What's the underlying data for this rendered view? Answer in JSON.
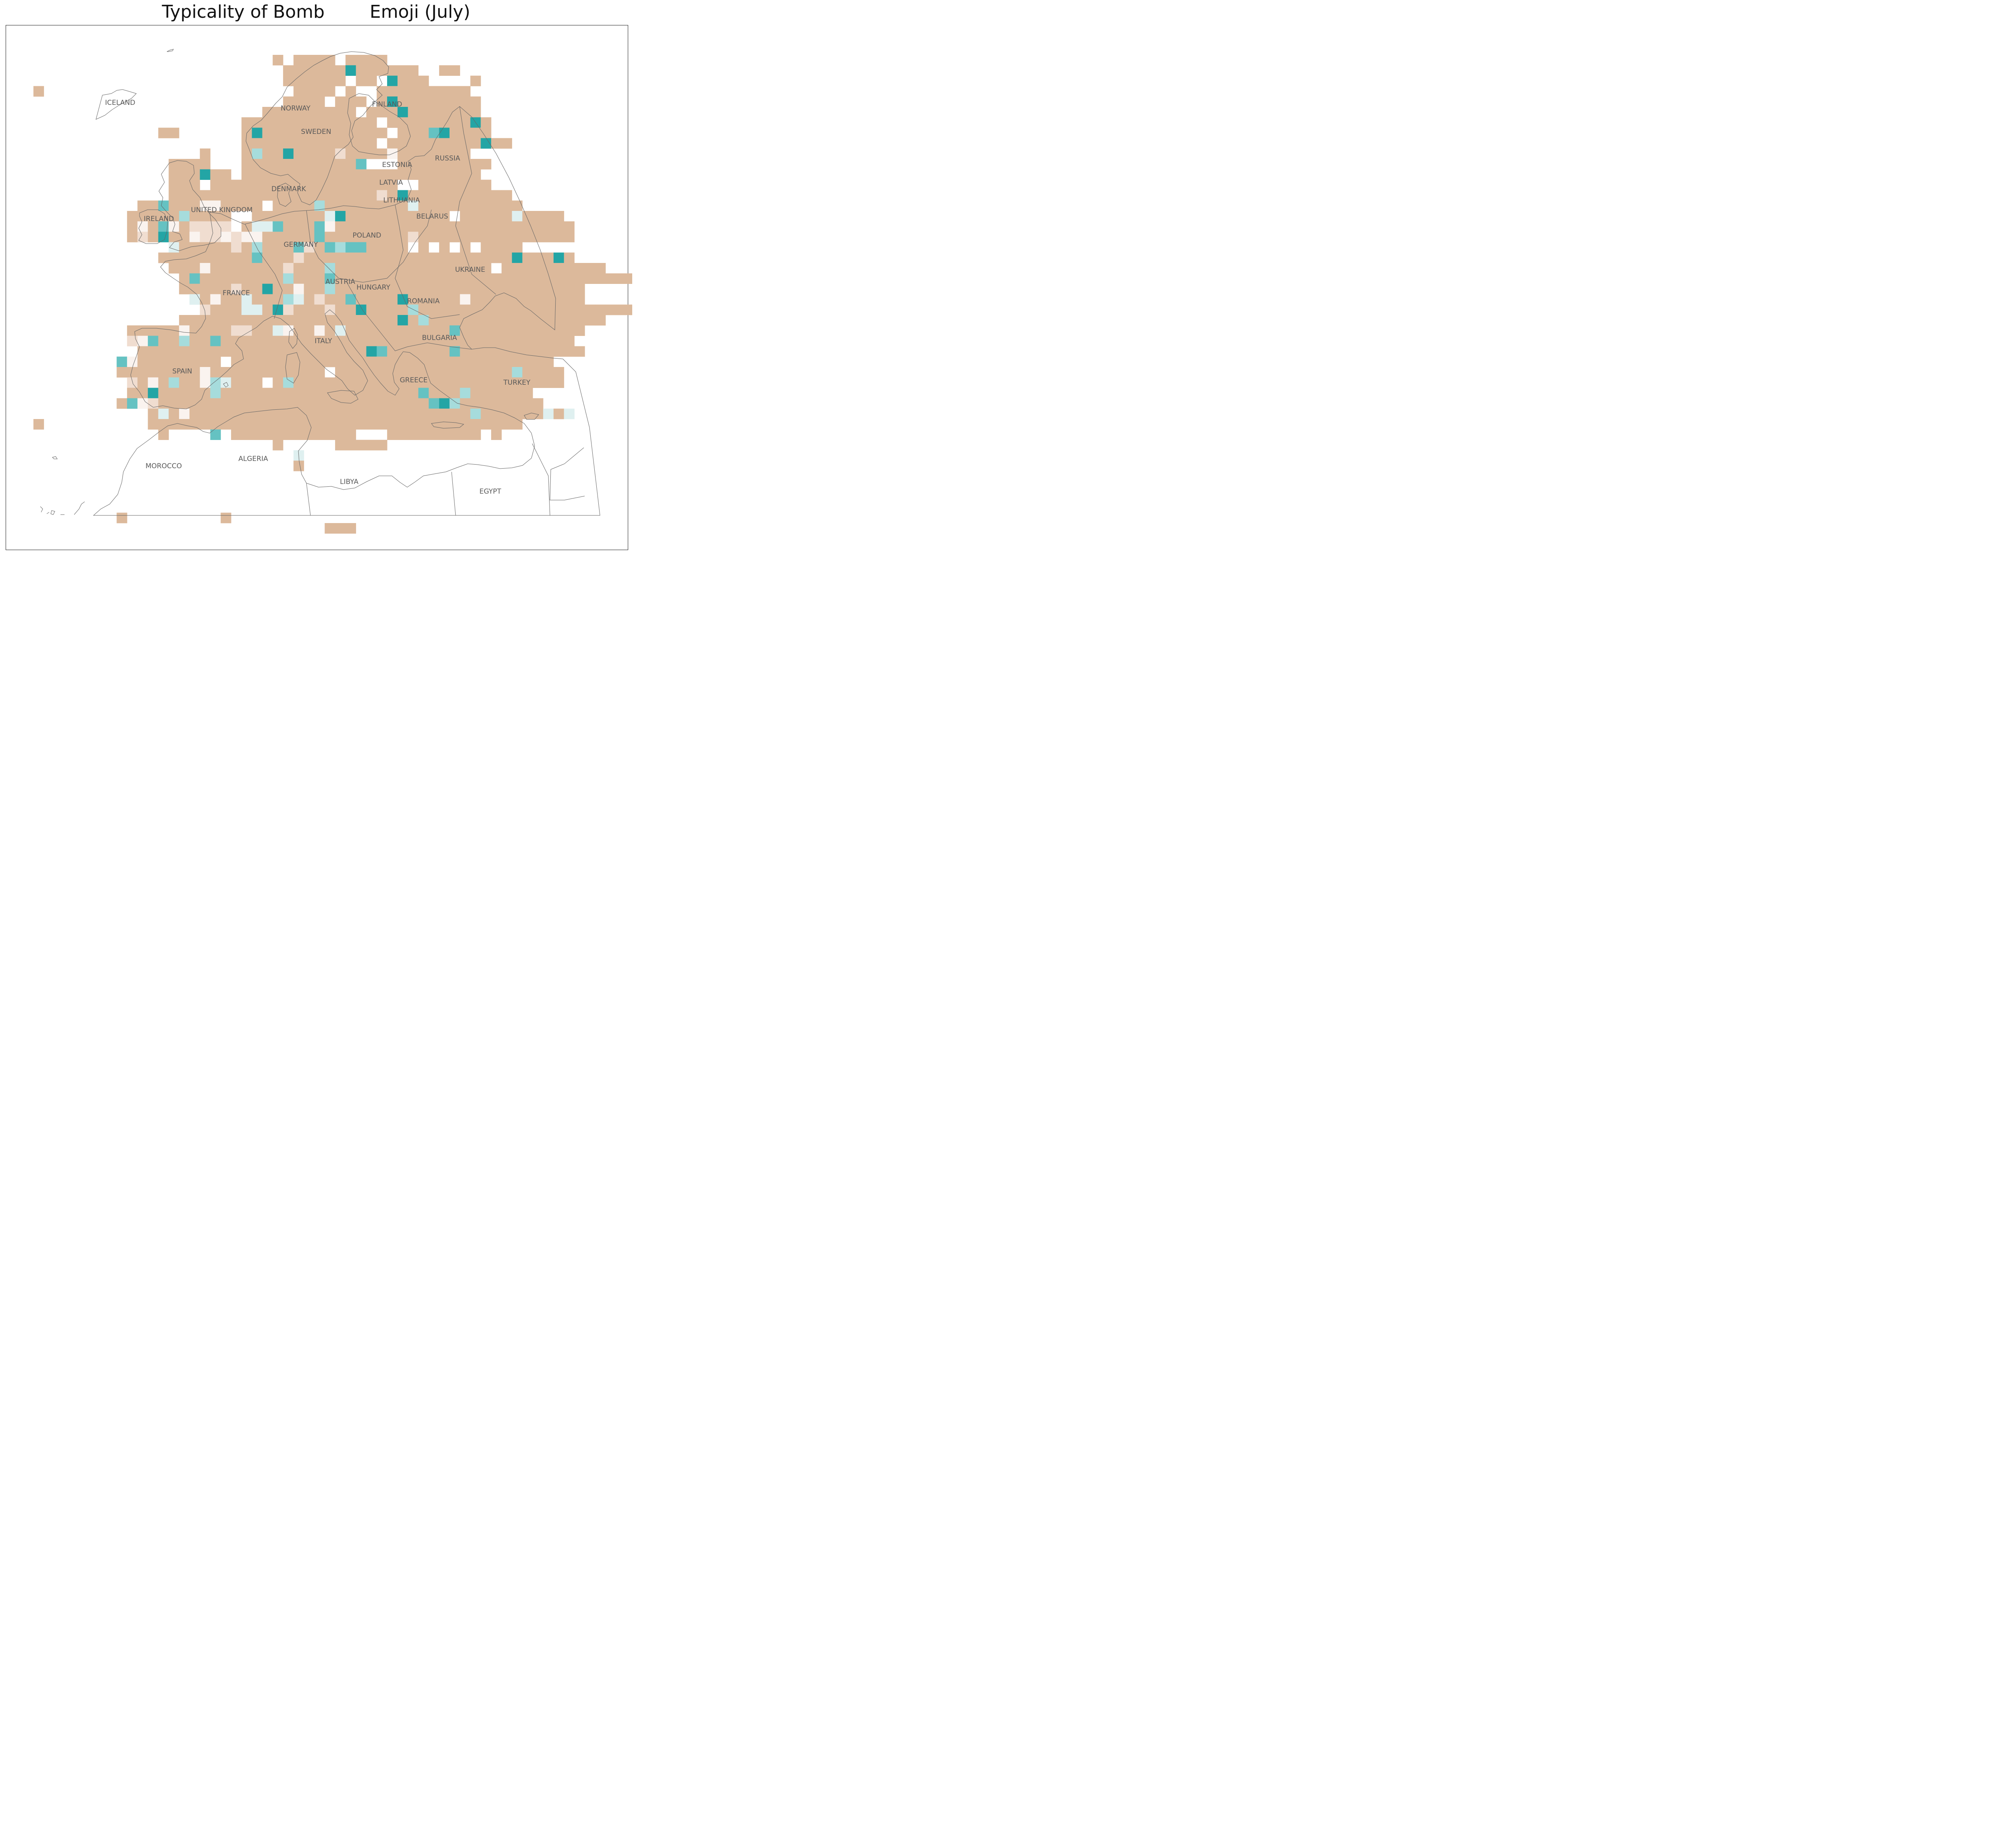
{
  "title": "Typicality of Bomb        Emoji (July)",
  "colors": {
    "baseline": "#dcb99b",
    "light_beige": "#f0ddd0",
    "near_white": "#faf3ef",
    "pale_teal": "#dff0f0",
    "light_teal": "#a6dcdc",
    "medium_teal": "#65c2c2",
    "dark_teal": "#23a5a5",
    "coastline": "#666666",
    "label": "#595959"
  },
  "country_labels": [
    {
      "id": "iceland",
      "text": "ICELAND"
    },
    {
      "id": "norway",
      "text": "NORWAY"
    },
    {
      "id": "finland",
      "text": "FINLAND"
    },
    {
      "id": "sweden",
      "text": "SWEDEN"
    },
    {
      "id": "russia",
      "text": "RUSSIA"
    },
    {
      "id": "estonia",
      "text": "ESTONIA"
    },
    {
      "id": "latvia",
      "text": "LATVIA"
    },
    {
      "id": "denmark",
      "text": "DENMARK"
    },
    {
      "id": "lithuania",
      "text": "LITHUANIA"
    },
    {
      "id": "united-kingdom",
      "text": "UNITED KINGDOM"
    },
    {
      "id": "belarus",
      "text": "BELARUS"
    },
    {
      "id": "ireland",
      "text": "IRELAND"
    },
    {
      "id": "poland",
      "text": "POLAND"
    },
    {
      "id": "germany",
      "text": "GERMANY"
    },
    {
      "id": "ukraine",
      "text": "UKRAINE"
    },
    {
      "id": "austria",
      "text": "AUSTRIA"
    },
    {
      "id": "hungary",
      "text": "HUNGARY"
    },
    {
      "id": "france",
      "text": "FRANCE"
    },
    {
      "id": "romania",
      "text": "ROMANIA"
    },
    {
      "id": "italy",
      "text": "ITALY"
    },
    {
      "id": "bulgaria",
      "text": "BULGARIA"
    },
    {
      "id": "spain",
      "text": "SPAIN"
    },
    {
      "id": "greece",
      "text": "GREECE"
    },
    {
      "id": "turkey",
      "text": "TURKEY"
    },
    {
      "id": "algeria",
      "text": "ALGERIA"
    },
    {
      "id": "morocco",
      "text": "MOROCCO"
    },
    {
      "id": "libya",
      "text": "LIBYA"
    },
    {
      "id": "egypt",
      "text": "EGYPT"
    }
  ]
}
